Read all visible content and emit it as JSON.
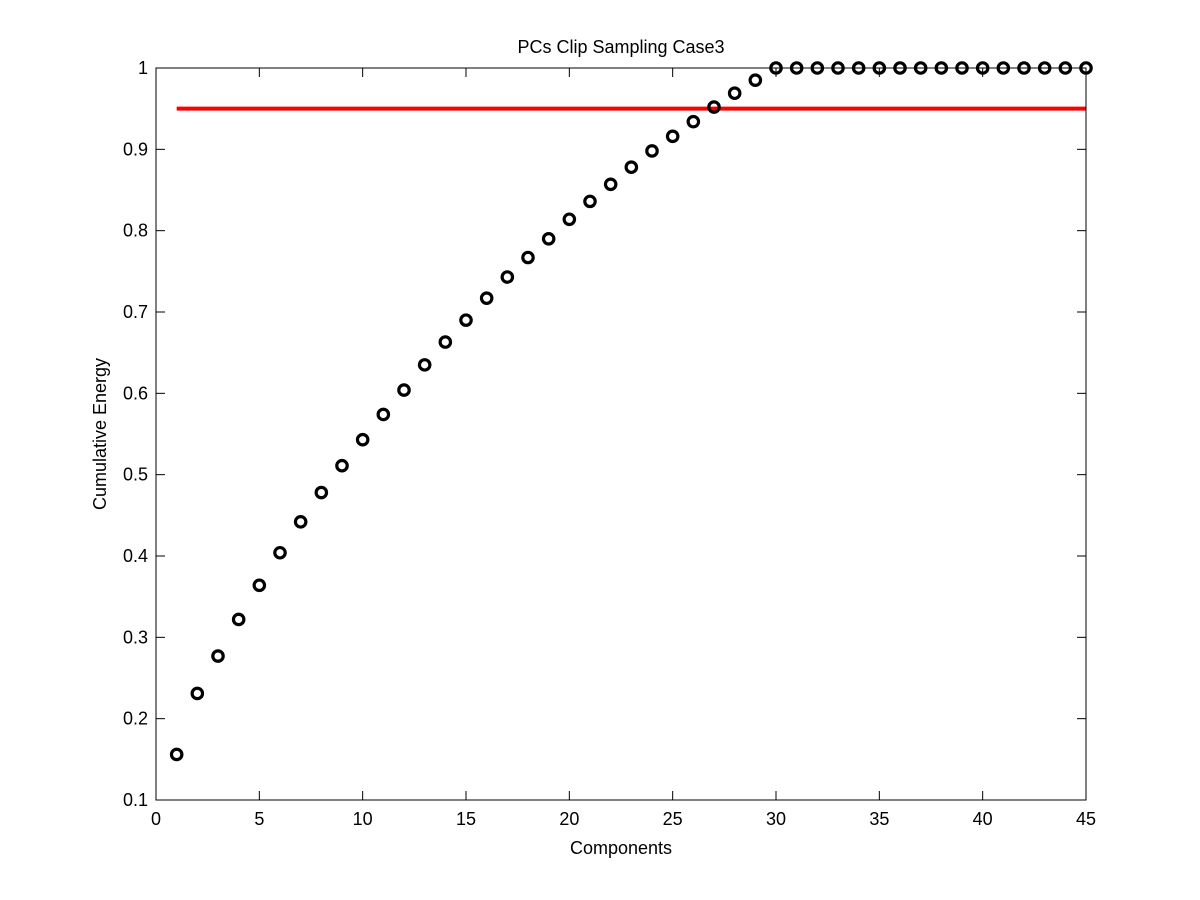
{
  "chart_data": {
    "type": "scatter",
    "title": "PCs Clip Sampling Case3",
    "xlabel": "Components",
    "ylabel": "Cumulative Energy",
    "xlim": [
      0,
      45
    ],
    "ylim": [
      0.1,
      1
    ],
    "xticks": [
      0,
      5,
      10,
      15,
      20,
      25,
      30,
      35,
      40,
      45
    ],
    "yticks": [
      0.1,
      0.2,
      0.3,
      0.4,
      0.5,
      0.6,
      0.7,
      0.8,
      0.9,
      1
    ],
    "xtick_labels": [
      "0",
      "5",
      "10",
      "15",
      "20",
      "25",
      "30",
      "35",
      "40",
      "45"
    ],
    "ytick_labels": [
      "0.1",
      "0.2",
      "0.3",
      "0.4",
      "0.5",
      "0.6",
      "0.7",
      "0.8",
      "0.9",
      "1"
    ],
    "grid": false,
    "series": [
      {
        "marker": "circle-open",
        "color": "#000000",
        "x": [
          1,
          2,
          3,
          4,
          5,
          6,
          7,
          8,
          9,
          10,
          11,
          12,
          13,
          14,
          15,
          16,
          17,
          18,
          19,
          20,
          21,
          22,
          23,
          24,
          25,
          26,
          27,
          28,
          29,
          30,
          31,
          32,
          33,
          34,
          35,
          36,
          37,
          38,
          39,
          40,
          41,
          42,
          43,
          44,
          45
        ],
        "y": [
          0.156,
          0.231,
          0.277,
          0.322,
          0.364,
          0.404,
          0.442,
          0.478,
          0.511,
          0.543,
          0.574,
          0.604,
          0.635,
          0.663,
          0.69,
          0.717,
          0.743,
          0.767,
          0.79,
          0.814,
          0.836,
          0.857,
          0.878,
          0.898,
          0.916,
          0.934,
          0.952,
          0.969,
          0.985,
          1,
          1,
          1,
          1,
          1,
          1,
          1,
          1,
          1,
          1,
          1,
          1,
          1,
          1,
          1,
          1
        ]
      }
    ],
    "reference_line": {
      "color": "#ff0000",
      "y": 0.95,
      "x_start": 1,
      "x_end": 45
    }
  }
}
